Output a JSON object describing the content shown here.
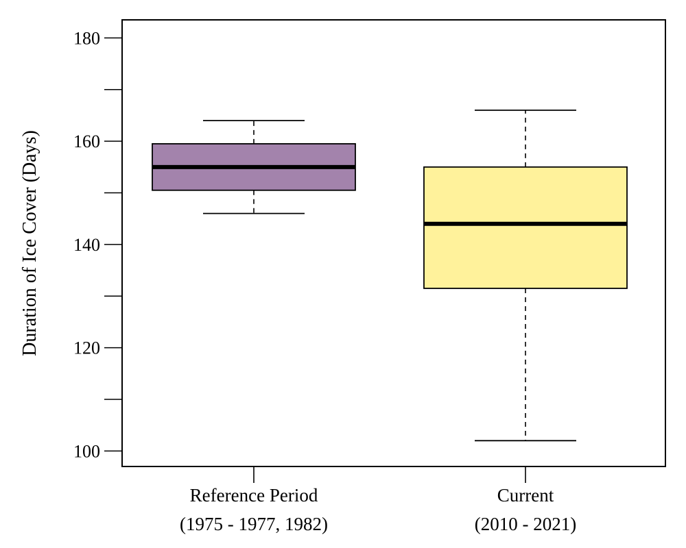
{
  "chart_data": {
    "type": "box",
    "ylabel": "Duration of Ice Cover (Days)",
    "ylim": [
      97,
      183.5
    ],
    "yticks": [
      100,
      110,
      120,
      130,
      140,
      150,
      160,
      170,
      180
    ],
    "ytick_labels": [
      "100",
      "",
      "120",
      "",
      "140",
      "",
      "160",
      "",
      "180"
    ],
    "grid": false,
    "categories": [
      {
        "line1": "Reference Period",
        "line2": "(1975 - 1977, 1982)"
      },
      {
        "line1": "Current",
        "line2": "(2010 - 2021)"
      }
    ],
    "boxes": [
      {
        "whisker_low": 146,
        "q1": 150.5,
        "median": 155,
        "q3": 159.5,
        "whisker_high": 164,
        "color": "#a383ac"
      },
      {
        "whisker_low": 102,
        "q1": 131.5,
        "median": 144,
        "q3": 155,
        "whisker_high": 166,
        "color": "#fff29b"
      }
    ]
  }
}
